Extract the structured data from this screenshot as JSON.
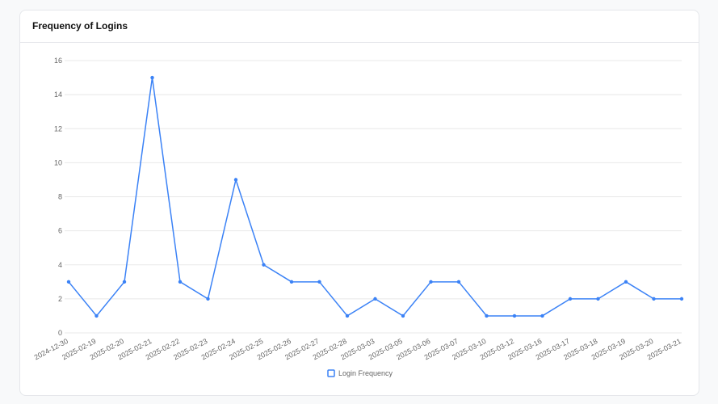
{
  "chart_data": {
    "type": "line",
    "title": "Frequency of Logins",
    "categories": [
      "2024-12-30",
      "2025-02-19",
      "2025-02-20",
      "2025-02-21",
      "2025-02-22",
      "2025-02-23",
      "2025-02-24",
      "2025-02-25",
      "2025-02-26",
      "2025-02-27",
      "2025-02-28",
      "2025-03-03",
      "2025-03-05",
      "2025-03-06",
      "2025-03-07",
      "2025-03-10",
      "2025-03-12",
      "2025-03-16",
      "2025-03-17",
      "2025-03-18",
      "2025-03-19",
      "2025-03-20",
      "2025-03-21"
    ],
    "series": [
      {
        "name": "Login Frequency",
        "color": "#3b82f6",
        "values": [
          3,
          1,
          3,
          15,
          3,
          2,
          9,
          4,
          3,
          3,
          1,
          2,
          1,
          3,
          3,
          1,
          1,
          1,
          2,
          2,
          3,
          2,
          2
        ]
      }
    ],
    "ylim": [
      0,
      16
    ],
    "yticks": [
      0,
      2,
      4,
      6,
      8,
      10,
      12,
      14,
      16
    ],
    "grid": true,
    "legend": "bottom"
  }
}
